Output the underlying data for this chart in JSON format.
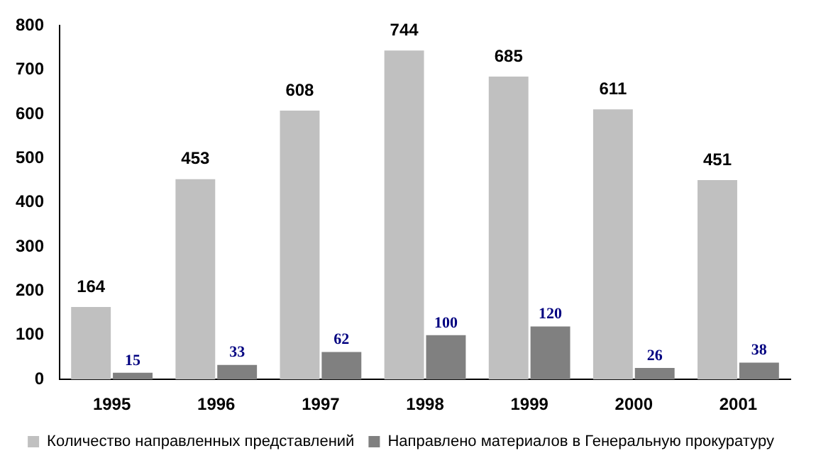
{
  "chart_data": {
    "type": "bar",
    "categories": [
      "1995",
      "1996",
      "1997",
      "1998",
      "1999",
      "2000",
      "2001"
    ],
    "series": [
      {
        "name": "Количество направленных представлений",
        "color": "#c0c0c0",
        "values": [
          164,
          453,
          608,
          744,
          685,
          611,
          451
        ]
      },
      {
        "name": "Направлено материалов в Генеральную прокуратуру",
        "color": "#808080",
        "values": [
          15,
          33,
          62,
          100,
          120,
          26,
          38
        ]
      }
    ],
    "ylim": [
      0,
      800
    ],
    "yticks": [
      0,
      100,
      200,
      300,
      400,
      500,
      600,
      700,
      800
    ],
    "grid": false,
    "legend": "bottom",
    "data_labels": true
  }
}
